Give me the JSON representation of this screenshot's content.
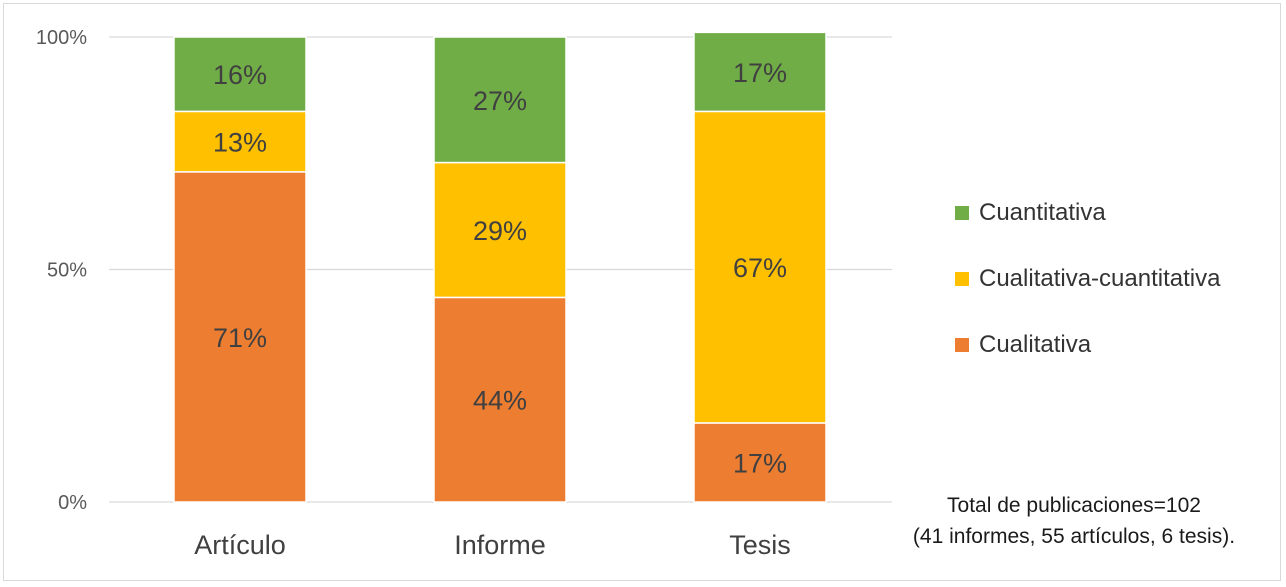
{
  "chart_data": {
    "type": "bar",
    "stacked": true,
    "percent_stacked": true,
    "categories": [
      "Artículo",
      "Informe",
      "Tesis"
    ],
    "series": [
      {
        "name": "Cualitativa",
        "values": [
          71,
          44,
          17
        ],
        "labels": [
          "71%",
          "44%",
          "17%"
        ],
        "color": "#ed7d31"
      },
      {
        "name": "Cualitativa-cuantitativa",
        "values": [
          13,
          29,
          67
        ],
        "labels": [
          "13%",
          "29%",
          "67%"
        ],
        "color": "#ffc000"
      },
      {
        "name": "Cuantitativa",
        "values": [
          16,
          27,
          17
        ],
        "labels": [
          "16%",
          "27%",
          "17%"
        ],
        "color": "#70ad47"
      }
    ],
    "yticks": [
      "0%",
      "50%",
      "100%"
    ],
    "ylim": [
      0,
      100
    ],
    "grid": true,
    "legend": "right",
    "legend_order": [
      "Cuantitativa",
      "Cualitativa-cuantitativa",
      "Cualitativa"
    ],
    "title": "",
    "xlabel": "",
    "ylabel": ""
  },
  "footnote": {
    "line1": "Total de publicaciones=102",
    "line2": "(41 informes, 55 artículos, 6 tesis)."
  }
}
